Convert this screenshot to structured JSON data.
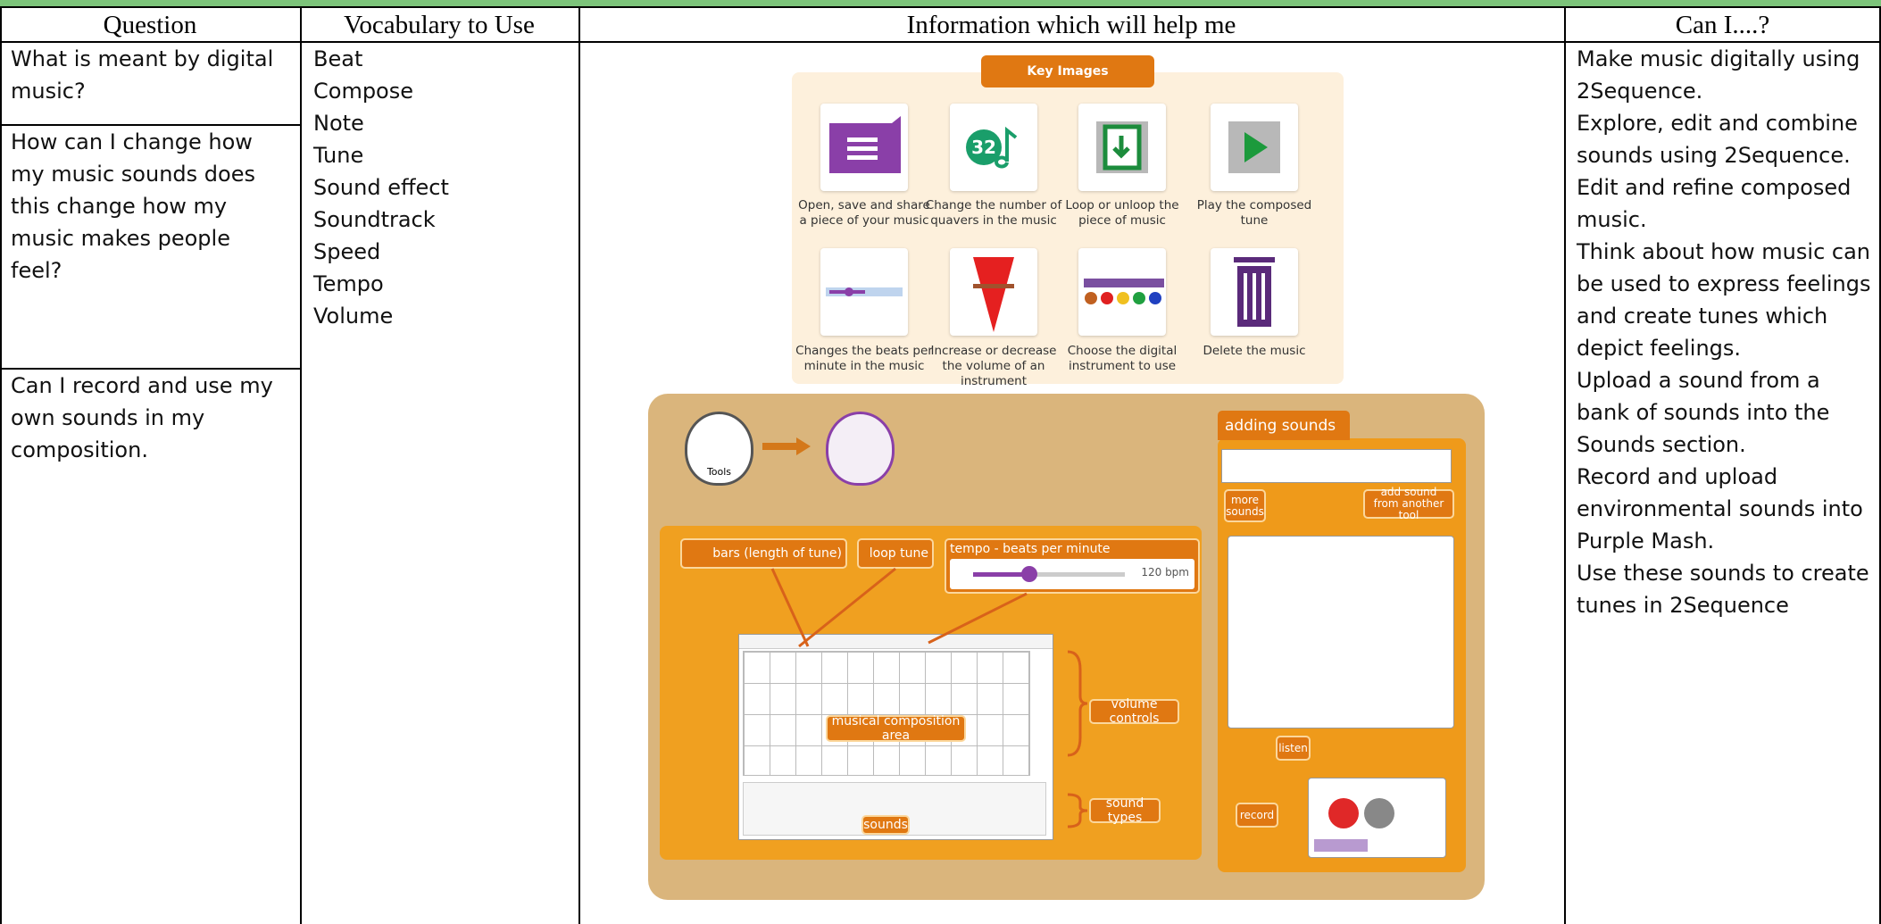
{
  "header": {
    "columns": [
      "Question",
      "Vocabulary to Use",
      "Information which will help me",
      "Can I....?"
    ]
  },
  "questions": [
    "What is meant by digital music?",
    "How can I change how my music sounds does this change how my music makes people feel?",
    "Can I record and use my own sounds in my composition."
  ],
  "vocabulary": [
    "Beat",
    "Compose",
    "Note",
    "Tune",
    "Sound effect",
    "Soundtrack",
    "Speed",
    "Tempo",
    "Volume"
  ],
  "can_i": [
    "Make music digitally using 2Sequence.",
    "Explore, edit and combine sounds using 2Sequence.",
    "Edit and refine composed music.",
    "Think about how music can be used to express feelings and create tunes which depict feelings.",
    "Upload a sound from a bank of sounds into the Sounds section.",
    "Record and upload environmental sounds into Purple Mash.",
    "Use these sounds to create tunes in 2Sequence"
  ],
  "key_images": {
    "title": "Key Images",
    "icon_text": "32",
    "captions": [
      "Open, save and share a piece of your music",
      "Change the number of quavers in the music",
      "Loop or unloop the piece of music",
      "Play the composed tune",
      "Changes the beats per minute in the music",
      "Increase or decrease the volume of an instrument",
      "Choose the digital instrument to use",
      "Delete the music"
    ]
  },
  "diagram": {
    "tools": "Tools",
    "adding_sounds": "adding sounds",
    "more_sounds": "more sounds",
    "add_from_tool": "add sound from another tool",
    "bars": "bars (length of tune)",
    "loop_tune": "loop tune",
    "tempo": "tempo - beats per minute",
    "bpm": "120 bpm",
    "composition_area": "musical composition area",
    "volume_controls": "volume controls",
    "sound_types": "sound types",
    "sounds": "sounds",
    "listen": "listen",
    "record": "record"
  }
}
